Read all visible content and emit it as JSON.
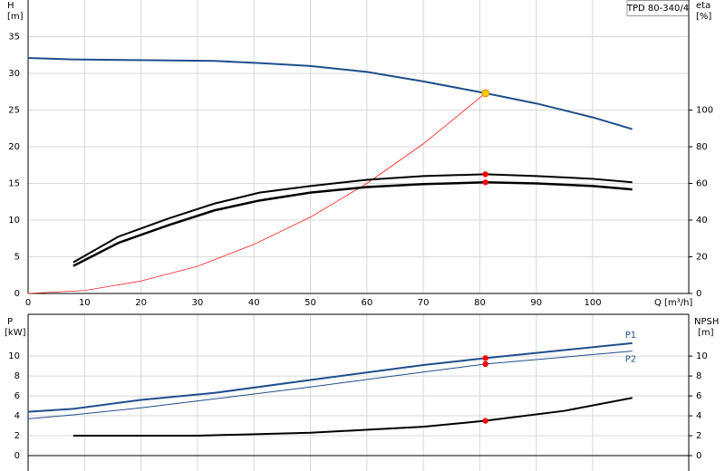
{
  "chart_data": [
    {
      "type": "line",
      "title": "TPD 80-340/4",
      "xlabel": "Q [m³/h]",
      "ylabel": "H",
      "yunit": "[m]",
      "y2label": "eta",
      "y2unit": "[%]",
      "xlim": [
        0,
        117
      ],
      "xticks": [
        0,
        10,
        20,
        30,
        40,
        50,
        60,
        70,
        80,
        90,
        100
      ],
      "ylim": [
        0,
        40
      ],
      "yticks": [
        0,
        5,
        10,
        15,
        20,
        25,
        30,
        35
      ],
      "y2lim": [
        0,
        160
      ],
      "y2ticks": [
        0,
        20,
        40,
        60,
        80,
        100
      ],
      "grid": true,
      "series": [
        {
          "color": "#1f4e8c",
          "width": 2,
          "x": [
            0,
            8,
            20,
            33,
            41,
            50,
            60,
            70,
            81,
            90,
            100,
            107
          ],
          "values": [
            32.1,
            31.9,
            31.8,
            31.7,
            31.4,
            31.0,
            30.2,
            28.9,
            27.3,
            25.9,
            24.0,
            22.4
          ]
        },
        {
          "color": "#ff2020",
          "width": 0.8,
          "x": [
            0,
            10,
            20,
            30,
            40,
            50,
            60,
            70,
            81
          ],
          "values": [
            0,
            0.4,
            1.7,
            3.7,
            6.7,
            10.4,
            15,
            20.4,
            27.3
          ]
        },
        {
          "color": "#000000",
          "width": 2,
          "axis": "y2",
          "x": [
            8,
            16,
            25,
            33,
            41,
            50,
            60,
            70,
            81,
            90,
            100,
            107
          ],
          "values": [
            17,
            31,
            41,
            49,
            55,
            58.6,
            62,
            64,
            65,
            64,
            62.5,
            60.6
          ]
        },
        {
          "color": "#000000",
          "width": 2.5,
          "axis": "y2",
          "x": [
            8,
            16,
            25,
            33,
            41,
            50,
            60,
            70,
            81,
            90,
            100,
            107
          ],
          "values": [
            15,
            27.6,
            37.4,
            45.3,
            50.7,
            55,
            58,
            59.6,
            60.6,
            60,
            58.6,
            56.7
          ]
        }
      ],
      "markers": [
        {
          "x": 81,
          "y": 27.3,
          "color": "#ffcc00"
        },
        {
          "x": 81,
          "y": 65,
          "axis": "y2",
          "color": "#ff0000"
        },
        {
          "x": 81,
          "y": 60.6,
          "axis": "y2",
          "color": "#ff0000"
        }
      ]
    },
    {
      "type": "line",
      "ylabel": "P",
      "yunit": "[kW]",
      "y2label": "NPSH",
      "y2unit": "[m]",
      "xlim": [
        0,
        117
      ],
      "ylim": [
        0,
        14.2
      ],
      "yticks": [
        0,
        2,
        4,
        6,
        8,
        10
      ],
      "y2lim": [
        0,
        14.2
      ],
      "y2ticks": [
        0,
        2,
        4,
        6,
        8,
        10
      ],
      "grid": true,
      "series": [
        {
          "name": "P1",
          "color": "#1f4e8c",
          "width": 2,
          "x": [
            0,
            8,
            20,
            33,
            50,
            70,
            81,
            107
          ],
          "values": [
            4.4,
            4.7,
            5.6,
            6.3,
            7.6,
            9.1,
            9.8,
            11.3
          ]
        },
        {
          "name": "P2",
          "color": "#1f4e8c",
          "width": 1,
          "x": [
            0,
            8,
            20,
            33,
            50,
            70,
            81,
            107
          ],
          "values": [
            3.7,
            4.1,
            4.8,
            5.7,
            6.9,
            8.4,
            9.2,
            10.5
          ]
        },
        {
          "color": "#000000",
          "width": 2,
          "axis": "y2",
          "x": [
            8,
            30,
            50,
            70,
            81,
            95,
            107
          ],
          "values": [
            2.0,
            2.0,
            2.3,
            2.9,
            3.5,
            4.5,
            5.8
          ]
        }
      ],
      "markers": [
        {
          "x": 81,
          "y": 9.8,
          "color": "#ff0000"
        },
        {
          "x": 81,
          "y": 9.2,
          "color": "#ff0000"
        },
        {
          "x": 81,
          "y": 3.5,
          "axis": "y2",
          "color": "#ff0000"
        }
      ]
    }
  ]
}
